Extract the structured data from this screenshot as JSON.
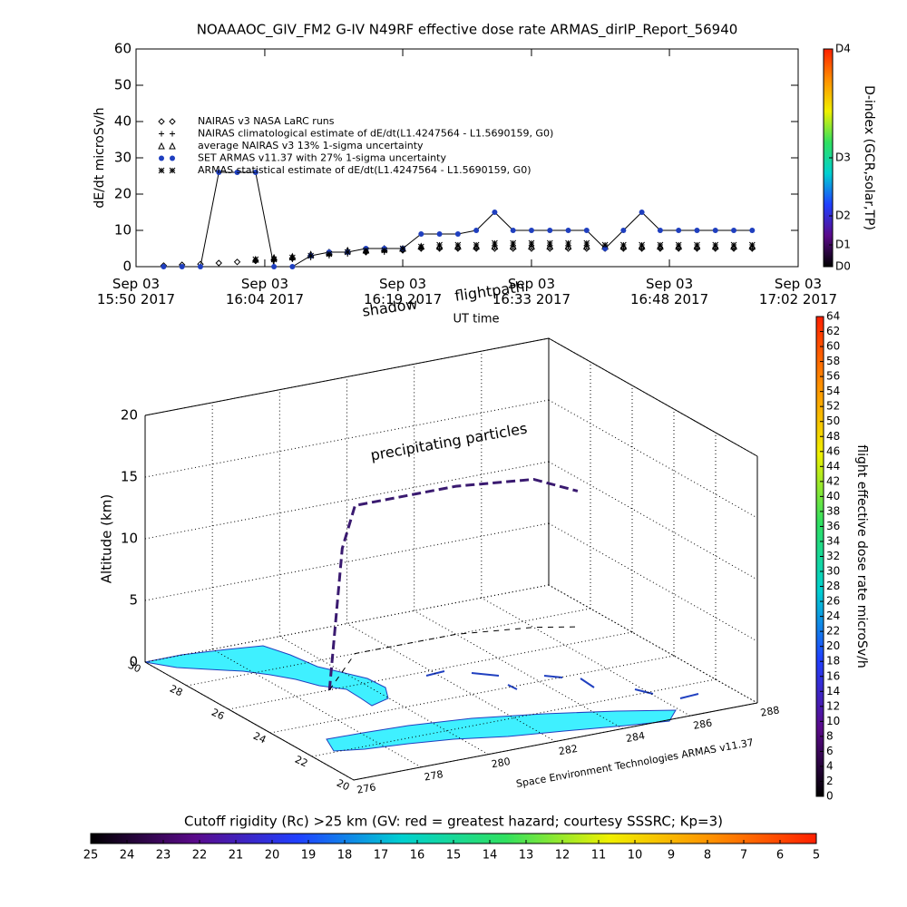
{
  "chart_data": [
    {
      "type": "line",
      "title": "NOAAAOC_GIV_FM2 G-IV    N49RF   effective dose rate ARMAS_dirIP_Report_56940",
      "xlabel": "UT time",
      "ylabel": "dE/dt microSv/h",
      "x": [
        "2017-09-03 15:53",
        "2017-09-03 15:55",
        "2017-09-03 15:57",
        "2017-09-03 15:59",
        "2017-09-03 16:01",
        "2017-09-03 16:03",
        "2017-09-03 16:05",
        "2017-09-03 16:07",
        "2017-09-03 16:09",
        "2017-09-03 16:11",
        "2017-09-03 16:13",
        "2017-09-03 16:15",
        "2017-09-03 16:17",
        "2017-09-03 16:19",
        "2017-09-03 16:21",
        "2017-09-03 16:23",
        "2017-09-03 16:25",
        "2017-09-03 16:27",
        "2017-09-03 16:29",
        "2017-09-03 16:31",
        "2017-09-03 16:33",
        "2017-09-03 16:35",
        "2017-09-03 16:37",
        "2017-09-03 16:39",
        "2017-09-03 16:41",
        "2017-09-03 16:43",
        "2017-09-03 16:45",
        "2017-09-03 16:47",
        "2017-09-03 16:49",
        "2017-09-03 16:51",
        "2017-09-03 16:53",
        "2017-09-03 16:55",
        "2017-09-03 16:57"
      ],
      "xlim": [
        "2017-09-03 15:50",
        "2017-09-03 17:02"
      ],
      "xticks": [
        {
          "value": "2017-09-03 15:50",
          "label": [
            "Sep 03",
            "15:50 2017"
          ]
        },
        {
          "value": "2017-09-03 16:04",
          "label": [
            "Sep 03",
            "16:04 2017"
          ]
        },
        {
          "value": "2017-09-03 16:19",
          "label": [
            "Sep 03",
            "16:19 2017"
          ]
        },
        {
          "value": "2017-09-03 16:33",
          "label": [
            "Sep 03",
            "16:33 2017"
          ]
        },
        {
          "value": "2017-09-03 16:48",
          "label": [
            "Sep 03",
            "16:48 2017"
          ]
        },
        {
          "value": "2017-09-03 17:02",
          "label": [
            "Sep 03",
            "17:02 2017"
          ]
        }
      ],
      "ylim": [
        0,
        60
      ],
      "yticks": [
        0,
        10,
        20,
        30,
        40,
        50,
        60
      ],
      "series": [
        {
          "name": "NAIRAS v3 NASA LaRC runs",
          "marker": "diamond",
          "color": "#000000",
          "values": [
            0.3,
            0.5,
            0.7,
            1,
            1.3,
            1.6,
            2,
            2.3,
            3,
            3.5,
            4,
            4,
            4.5,
            4.5,
            5,
            5,
            5,
            5,
            5,
            5,
            5,
            5,
            5,
            5,
            5,
            5,
            5,
            5,
            5,
            5,
            5,
            5,
            5
          ]
        },
        {
          "name": "NAIRAS climatological estimate of dE/dt(L1.4247564 - L1.5690159, G0)",
          "marker": "plus",
          "color": "#000000",
          "values": [
            null,
            null,
            null,
            null,
            null,
            1.5,
            1.5,
            2,
            2.5,
            3,
            3.5,
            4,
            4,
            4.5,
            5,
            5,
            5,
            5,
            5.5,
            5.5,
            5.5,
            5.5,
            5.5,
            5.5,
            5,
            5,
            5,
            5,
            5,
            5,
            5,
            5,
            5
          ]
        },
        {
          "name": "average NAIRAS v3 13% 1-sigma uncertainty",
          "marker": "triangle",
          "color": "#000000",
          "values": [
            null,
            null,
            null,
            null,
            null,
            2,
            2.5,
            2.8,
            3.4,
            4,
            4.5,
            4.5,
            5,
            5,
            5.6,
            5.6,
            5.6,
            5.6,
            5.6,
            5.6,
            5.6,
            5.6,
            5.6,
            5.6,
            5.6,
            5.6,
            5.6,
            5.6,
            5.6,
            5.6,
            5.6,
            5.6,
            5.6
          ]
        },
        {
          "name": "SET ARMAS v11.37 with 27% 1-sigma uncertainty",
          "marker": "circle",
          "color": "#1f3fbf",
          "line_color": "#000000",
          "values": [
            0,
            0,
            0,
            26,
            26,
            26,
            0,
            0,
            3,
            4,
            4,
            5,
            5,
            5,
            9,
            9,
            9,
            10,
            15,
            10,
            10,
            10,
            10,
            10,
            5,
            10,
            15,
            10,
            10,
            10,
            10,
            10,
            10
          ]
        },
        {
          "name": "ARMAS statistical estimate of dE/dt(L1.4247564 - L1.5690159, G0)",
          "marker": "asterisk",
          "color": "#000000",
          "values": [
            null,
            null,
            null,
            null,
            null,
            2,
            2,
            2.5,
            3,
            3.5,
            4,
            4.5,
            4.5,
            5,
            5.5,
            6,
            6,
            6,
            6.5,
            6.5,
            6.5,
            6.5,
            6.5,
            6.5,
            6,
            6,
            6,
            6,
            6,
            6,
            6,
            6,
            6
          ]
        }
      ]
    },
    {
      "type": "colorbar",
      "orient": "vertical",
      "label": "D-index (GCR,solar,TP)",
      "lim": [
        0,
        60
      ],
      "ticks": [
        {
          "value": 0,
          "label": "D0"
        },
        {
          "value": 6,
          "label": "D1"
        },
        {
          "value": 14,
          "label": "D2"
        },
        {
          "value": 30,
          "label": "D3"
        },
        {
          "value": 60,
          "label": "D4"
        }
      ],
      "colors": [
        "#000000",
        "#5a0a8a",
        "#2040ff",
        "#00d0d0",
        "#30e060",
        "#f0f000",
        "#ff9000",
        "#ff2000"
      ]
    },
    {
      "type": "line3d",
      "zlabel": "Altitude (km)",
      "xlim": [
        276,
        288
      ],
      "xticks": [
        276,
        278,
        280,
        282,
        284,
        286,
        288
      ],
      "ylim": [
        20,
        30
      ],
      "yticks": [
        20,
        22,
        24,
        26,
        28,
        30
      ],
      "zlim": [
        0,
        20
      ],
      "zticks": [
        0,
        5,
        10,
        15,
        20
      ],
      "series": [
        {
          "name": "flightpath",
          "color": "#3a1a70",
          "x": [
            279.0,
            279.5,
            280.0,
            281.0,
            284.0,
            286.0,
            287.0
          ],
          "y": [
            26.0,
            26.5,
            27.0,
            28.0,
            28.0,
            27.5,
            27.0
          ],
          "z": [
            0,
            5,
            10,
            12,
            12,
            12,
            11
          ]
        }
      ],
      "annotations": [
        "shadow",
        "precipitating particles"
      ],
      "credit": "Space Environment Technologies ARMAS v11.37"
    },
    {
      "type": "colorbar",
      "orient": "vertical",
      "label": "flight effective dose rate microSv/h",
      "lim": [
        0,
        64
      ],
      "ticks": [
        0,
        2,
        4,
        6,
        8,
        10,
        12,
        14,
        16,
        18,
        20,
        22,
        24,
        26,
        28,
        30,
        32,
        34,
        36,
        38,
        40,
        42,
        44,
        46,
        48,
        50,
        52,
        54,
        56,
        58,
        60,
        62,
        64
      ],
      "colors": [
        "#000000",
        "#5a0a8a",
        "#2040ff",
        "#00d0d0",
        "#30e060",
        "#f0f000",
        "#ff9000",
        "#ff2000"
      ]
    },
    {
      "type": "colorbar",
      "orient": "horizontal",
      "label": "Cutoff rigidity (Rc) >25 km (GV: red = greatest hazard; courtesy SSSRC; Kp=3)",
      "lim": [
        25,
        5
      ],
      "ticks": [
        25,
        24,
        23,
        22,
        21,
        20,
        19,
        18,
        17,
        16,
        15,
        14,
        13,
        12,
        11,
        10,
        9,
        8,
        7,
        6,
        5
      ],
      "colors": [
        "#000000",
        "#5a0a8a",
        "#2040ff",
        "#00d0d0",
        "#30e060",
        "#f0f000",
        "#ff9000",
        "#ff2000"
      ]
    }
  ]
}
